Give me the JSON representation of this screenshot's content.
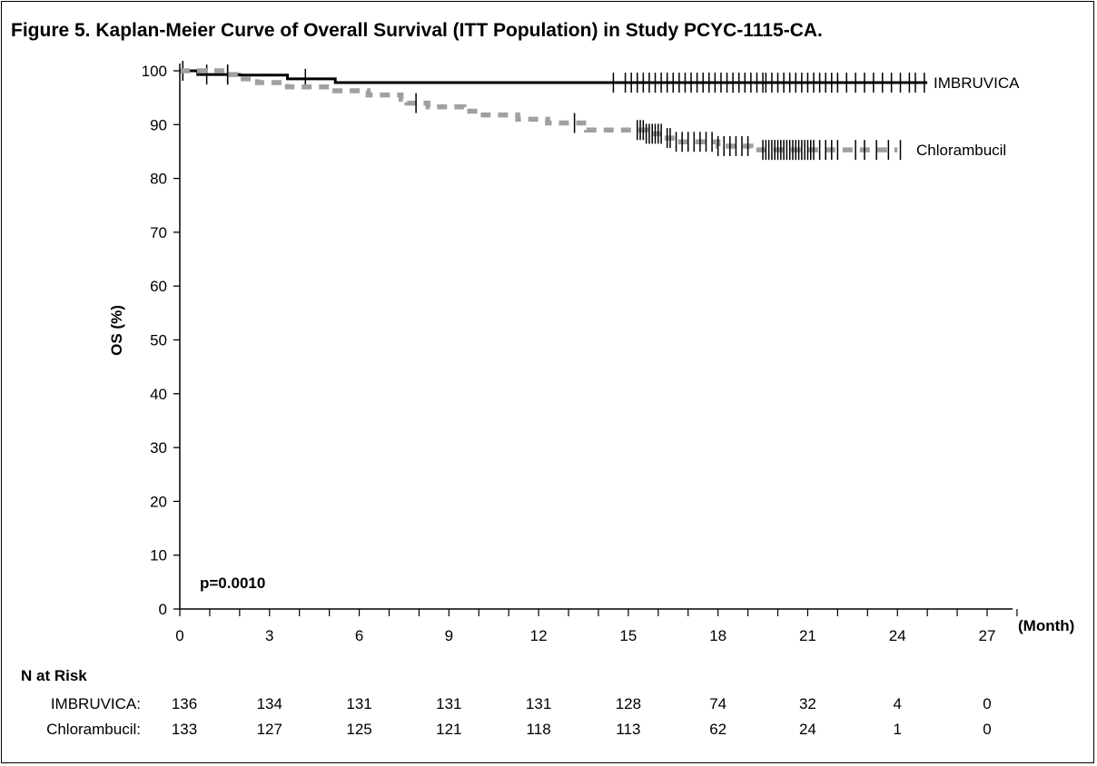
{
  "title": "Figure 5. Kaplan-Meier Curve of Overall Survival (ITT Population) in Study PCYC-1115-CA.",
  "chart_data": {
    "type": "line",
    "subtype": "kaplan-meier",
    "ylabel": "OS (%)",
    "xlabel": "(Month)",
    "xlim": [
      0,
      27
    ],
    "ylim": [
      0,
      100
    ],
    "x_ticks": [
      0,
      3,
      6,
      9,
      12,
      15,
      18,
      21,
      24,
      27
    ],
    "y_ticks": [
      0,
      10,
      20,
      30,
      40,
      50,
      60,
      70,
      80,
      90,
      100
    ],
    "annotation": "p=0.0010",
    "series": [
      {
        "name": "IMBRUVICA",
        "color": "#000000",
        "style": "solid",
        "steps": [
          [
            0,
            100
          ],
          [
            0.6,
            99.3
          ],
          [
            1.9,
            99.3
          ],
          [
            2.0,
            99.2
          ],
          [
            3.6,
            98.5
          ],
          [
            5.2,
            97.8
          ],
          [
            25.0,
            97.8
          ]
        ],
        "censored": [
          0.1,
          0.9,
          1.6,
          4.2,
          14.5,
          14.9,
          15.1,
          15.3,
          15.5,
          15.7,
          15.9,
          16.1,
          16.3,
          16.5,
          16.7,
          16.9,
          17.1,
          17.3,
          17.5,
          17.7,
          17.9,
          18.1,
          18.3,
          18.5,
          18.7,
          18.9,
          19.1,
          19.3,
          19.5,
          19.6,
          19.8,
          20.0,
          20.2,
          20.4,
          20.6,
          20.8,
          21.0,
          21.2,
          21.4,
          21.6,
          21.8,
          22.0,
          22.3,
          22.6,
          22.9,
          23.2,
          23.5,
          23.8,
          24.1,
          24.4,
          24.6,
          24.9
        ]
      },
      {
        "name": "Chlorambucil",
        "color": "#a0a0a0",
        "style": "dashed",
        "steps": [
          [
            0,
            100
          ],
          [
            1.5,
            99.3
          ],
          [
            2.0,
            98.5
          ],
          [
            2.6,
            97.8
          ],
          [
            3.6,
            97.0
          ],
          [
            5.0,
            96.3
          ],
          [
            6.3,
            95.5
          ],
          [
            7.4,
            94.7
          ],
          [
            7.6,
            94.0
          ],
          [
            8.3,
            93.3
          ],
          [
            9.5,
            92.5
          ],
          [
            10.0,
            91.8
          ],
          [
            11.3,
            91.0
          ],
          [
            12.3,
            90.3
          ],
          [
            13.6,
            89.0
          ],
          [
            15.6,
            88.3
          ],
          [
            16.2,
            87.5
          ],
          [
            16.6,
            86.8
          ],
          [
            18.0,
            86.0
          ],
          [
            19.1,
            85.3
          ],
          [
            24.0,
            85.3
          ]
        ],
        "censored": [
          1.6,
          7.9,
          13.2,
          15.3,
          15.4,
          15.5,
          15.6,
          15.7,
          15.8,
          15.9,
          16.0,
          16.1,
          16.3,
          16.4,
          16.6,
          16.8,
          17.0,
          17.2,
          17.4,
          17.6,
          17.8,
          18.0,
          18.2,
          18.4,
          18.6,
          18.8,
          19.0,
          19.5,
          19.6,
          19.7,
          19.8,
          19.9,
          20.0,
          20.1,
          20.2,
          20.3,
          20.4,
          20.5,
          20.6,
          20.7,
          20.8,
          20.9,
          21.0,
          21.1,
          21.2,
          21.4,
          21.6,
          21.8,
          22.0,
          22.6,
          22.9,
          23.3,
          23.7,
          24.1
        ]
      }
    ]
  },
  "risk_table": {
    "title": "N at Risk",
    "rows": [
      {
        "label": "IMBRUVICA:",
        "values": [
          "136",
          "134",
          "131",
          "131",
          "131",
          "128",
          "74",
          "32",
          "4",
          "0"
        ]
      },
      {
        "label": "Chlorambucil:",
        "values": [
          "133",
          "127",
          "125",
          "121",
          "118",
          "113",
          "62",
          "24",
          "1",
          "0"
        ]
      }
    ]
  }
}
